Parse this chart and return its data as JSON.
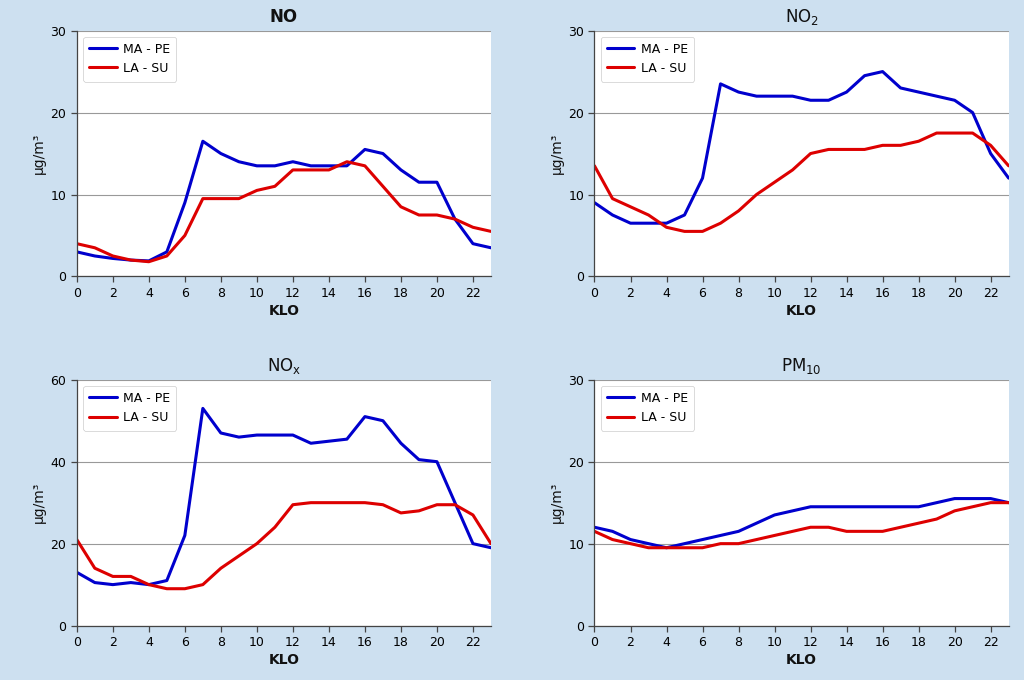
{
  "background_color": "#cde0f0",
  "plot_bg_color": "#ffffff",
  "blue_color": "#0000CD",
  "red_color": "#DD0000",
  "line_width": 2.2,
  "xlabel": "KLO",
  "ylabel": "μg/m³",
  "legend_labels": [
    "MA - PE",
    "LA - SU"
  ],
  "x": [
    0,
    1,
    2,
    3,
    4,
    5,
    6,
    7,
    8,
    9,
    10,
    11,
    12,
    13,
    14,
    15,
    16,
    17,
    18,
    19,
    20,
    21,
    22,
    23
  ],
  "NO": {
    "title": "NO",
    "title_x_sub": null,
    "title_sub": null,
    "ylim": [
      0,
      30
    ],
    "yticks": [
      0,
      10,
      20,
      30
    ],
    "blue": [
      3.0,
      2.5,
      2.2,
      2.0,
      1.9,
      3.0,
      9.0,
      16.5,
      15.0,
      14.0,
      13.5,
      13.5,
      14.0,
      13.5,
      13.5,
      13.5,
      15.5,
      15.0,
      13.0,
      11.5,
      11.5,
      7.0,
      4.0,
      3.5
    ],
    "red": [
      4.0,
      3.5,
      2.5,
      2.0,
      1.8,
      2.5,
      5.0,
      9.5,
      9.5,
      9.5,
      10.5,
      11.0,
      13.0,
      13.0,
      13.0,
      14.0,
      13.5,
      11.0,
      8.5,
      7.5,
      7.5,
      7.0,
      6.0,
      5.5
    ]
  },
  "NO2": {
    "title": "NO",
    "title_sub": "2",
    "ylim": [
      0,
      30
    ],
    "yticks": [
      0,
      10,
      20,
      30
    ],
    "blue": [
      9.0,
      7.5,
      6.5,
      6.5,
      6.5,
      7.5,
      12.0,
      23.5,
      22.5,
      22.0,
      22.0,
      22.0,
      21.5,
      21.5,
      22.5,
      24.5,
      25.0,
      23.0,
      22.5,
      22.0,
      21.5,
      20.0,
      15.0,
      12.0
    ],
    "red": [
      13.5,
      9.5,
      8.5,
      7.5,
      6.0,
      5.5,
      5.5,
      6.5,
      8.0,
      10.0,
      11.5,
      13.0,
      15.0,
      15.5,
      15.5,
      15.5,
      16.0,
      16.0,
      16.5,
      17.5,
      17.5,
      17.5,
      16.0,
      13.5
    ]
  },
  "NOx": {
    "title": "NO",
    "title_sub": "x",
    "ylim": [
      0,
      60
    ],
    "yticks": [
      0,
      20,
      40,
      60
    ],
    "blue": [
      13.0,
      10.5,
      10.0,
      10.5,
      10.0,
      11.0,
      22.0,
      53.0,
      47.0,
      46.0,
      46.5,
      46.5,
      46.5,
      44.5,
      45.0,
      45.5,
      51.0,
      50.0,
      44.5,
      40.5,
      40.0,
      30.0,
      20.0,
      19.0
    ],
    "red": [
      21.0,
      14.0,
      12.0,
      12.0,
      10.0,
      9.0,
      9.0,
      10.0,
      14.0,
      17.0,
      20.0,
      24.0,
      29.5,
      30.0,
      30.0,
      30.0,
      30.0,
      29.5,
      27.5,
      28.0,
      29.5,
      29.5,
      27.0,
      20.0
    ]
  },
  "PM10": {
    "title": "PM",
    "title_sub": "10",
    "ylim": [
      0,
      30
    ],
    "yticks": [
      0,
      10,
      20,
      30
    ],
    "blue": [
      12.0,
      11.5,
      10.5,
      10.0,
      9.5,
      10.0,
      10.5,
      11.0,
      11.5,
      12.5,
      13.5,
      14.0,
      14.5,
      14.5,
      14.5,
      14.5,
      14.5,
      14.5,
      14.5,
      15.0,
      15.5,
      15.5,
      15.5,
      15.0
    ],
    "red": [
      11.5,
      10.5,
      10.0,
      9.5,
      9.5,
      9.5,
      9.5,
      10.0,
      10.0,
      10.5,
      11.0,
      11.5,
      12.0,
      12.0,
      11.5,
      11.5,
      11.5,
      12.0,
      12.5,
      13.0,
      14.0,
      14.5,
      15.0,
      15.0
    ]
  }
}
